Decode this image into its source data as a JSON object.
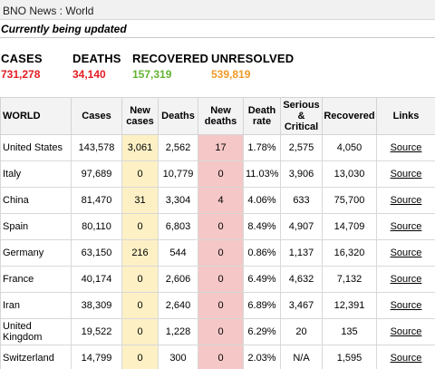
{
  "header": {
    "source": "BNO News : World",
    "status": "Currently being updated"
  },
  "summary": {
    "cases_label": "CASES",
    "cases": "731,278",
    "deaths_label": "DEATHS",
    "deaths": "34,140",
    "recovered_label": "RECOVERED",
    "recovered": "157,319",
    "unresolved_label": "UNRESOLVED",
    "unresolved": "539,819"
  },
  "colors": {
    "cases": "#e31c23",
    "deaths": "#e31c23",
    "recovered": "#63b332",
    "unresolved": "#f09a29",
    "new_cases_bg": "#fdf0c5",
    "new_deaths_bg": "#f5c7c7"
  },
  "table": {
    "headers": [
      "WORLD",
      "Cases",
      "New cases",
      "Deaths",
      "New deaths",
      "Death rate",
      "Serious & Critical",
      "Recovered",
      "Links"
    ],
    "rows": [
      [
        "United States",
        "143,578",
        "3,061",
        "2,562",
        "17",
        "1.78%",
        "2,575",
        "4,050",
        "Source"
      ],
      [
        "Italy",
        "97,689",
        "0",
        "10,779",
        "0",
        "11.03%",
        "3,906",
        "13,030",
        "Source"
      ],
      [
        "China",
        "81,470",
        "31",
        "3,304",
        "4",
        "4.06%",
        "633",
        "75,700",
        "Source"
      ],
      [
        "Spain",
        "80,110",
        "0",
        "6,803",
        "0",
        "8.49%",
        "4,907",
        "14,709",
        "Source"
      ],
      [
        "Germany",
        "63,150",
        "216",
        "544",
        "0",
        "0.86%",
        "1,137",
        "16,320",
        "Source"
      ],
      [
        "France",
        "40,174",
        "0",
        "2,606",
        "0",
        "6.49%",
        "4,632",
        "7,132",
        "Source"
      ],
      [
        "Iran",
        "38,309",
        "0",
        "2,640",
        "0",
        "6.89%",
        "3,467",
        "12,391",
        "Source"
      ],
      [
        "United Kingdom",
        "19,522",
        "0",
        "1,228",
        "0",
        "6.29%",
        "20",
        "135",
        "Source"
      ],
      [
        "Switzerland",
        "14,799",
        "0",
        "300",
        "0",
        "2.03%",
        "N/A",
        "1,595",
        "Source"
      ]
    ]
  }
}
